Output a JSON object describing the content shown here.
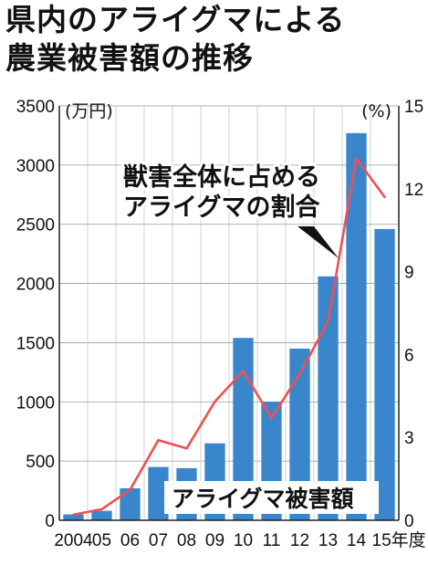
{
  "header": {
    "title_line1": "県内のアライグマによる",
    "title_line2": "農業被害額の推移"
  },
  "chart_data": {
    "type": "bar",
    "categories": [
      "2004",
      "05",
      "06",
      "07",
      "08",
      "09",
      "10",
      "11",
      "12",
      "13",
      "14",
      "15年度"
    ],
    "series": [
      {
        "name": "アライグマ被害額",
        "type": "bar",
        "axis": "left",
        "color": "#3a86cc",
        "values": [
          50,
          80,
          270,
          450,
          440,
          650,
          1540,
          1000,
          1450,
          2060,
          3270,
          2460
        ]
      },
      {
        "name": "獣害全体に占めるアライグマの割合",
        "type": "line",
        "axis": "right",
        "color": "#f05050",
        "values": [
          0.2,
          0.4,
          1.1,
          2.9,
          2.6,
          4.3,
          5.4,
          3.7,
          5.3,
          7.2,
          13.1,
          11.7
        ]
      }
    ],
    "left_axis": {
      "unit": "(万円)",
      "ylim": [
        0,
        3500
      ],
      "ticks": [
        "0",
        "500",
        "1000",
        "1500",
        "2000",
        "2500",
        "3000",
        "3500"
      ]
    },
    "right_axis": {
      "unit": "(%)",
      "ylim": [
        0,
        15
      ],
      "ticks": [
        "0",
        "3",
        "6",
        "9",
        "12",
        "15"
      ]
    },
    "annotation": {
      "line1": "獣害全体に占める",
      "line2": "アライグマの割合"
    },
    "bar_label": "アライグマ被害額"
  }
}
